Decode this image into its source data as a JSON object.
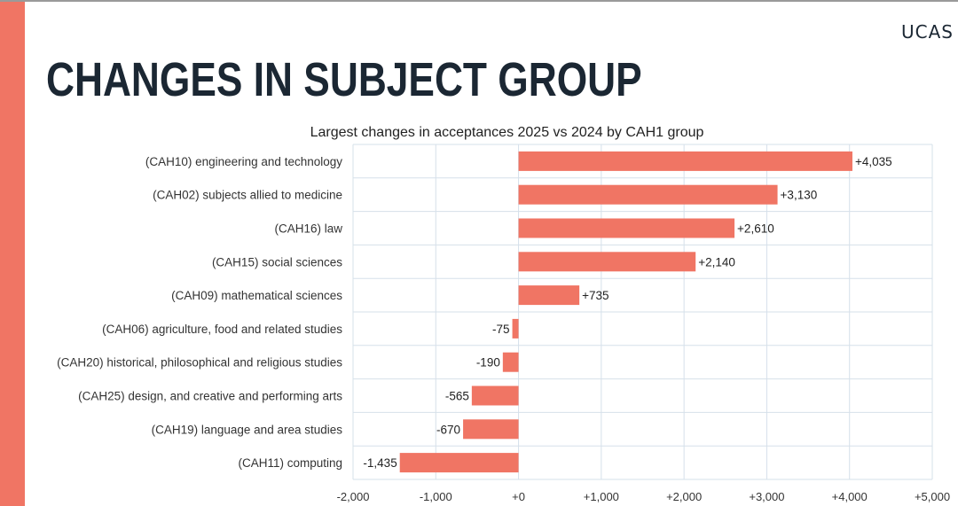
{
  "brand": {
    "logo_text": "UCAS"
  },
  "page": {
    "title": "CHANGES IN SUBJECT GROUP"
  },
  "colors": {
    "accent": "#f07564",
    "bar": "#f07564",
    "title": "#1b2733",
    "grid": "#d6e0ea"
  },
  "chart_data": {
    "type": "bar",
    "orientation": "horizontal",
    "title": "Largest changes in acceptances 2025 vs 2024 by CAH1 group",
    "categories": [
      "(CAH10) engineering and technology",
      "(CAH02) subjects allied to medicine",
      "(CAH16) law",
      "(CAH15) social sciences",
      "(CAH09) mathematical sciences",
      "(CAH06) agriculture, food and related studies",
      "(CAH20) historical, philosophical and religious studies",
      "(CAH25) design, and creative and performing arts",
      "(CAH19) language and area studies",
      "(CAH11) computing"
    ],
    "values": [
      4035,
      3130,
      2610,
      2140,
      735,
      -75,
      -190,
      -565,
      -670,
      -1435
    ],
    "value_labels": [
      "+4,035",
      "+3,130",
      "+2,610",
      "+2,140",
      "+735",
      "-75",
      "-190",
      "-565",
      "-670",
      "-1,435"
    ],
    "xlim": [
      -2000,
      5000
    ],
    "x_ticks": [
      -2000,
      -1000,
      0,
      1000,
      2000,
      3000,
      4000,
      5000
    ],
    "x_tick_labels": [
      "-2,000",
      "-1,000",
      "+0",
      "+1,000",
      "+2,000",
      "+3,000",
      "+4,000",
      "+5,000"
    ],
    "xlabel": "",
    "ylabel": "",
    "grid": true,
    "legend": "none"
  }
}
